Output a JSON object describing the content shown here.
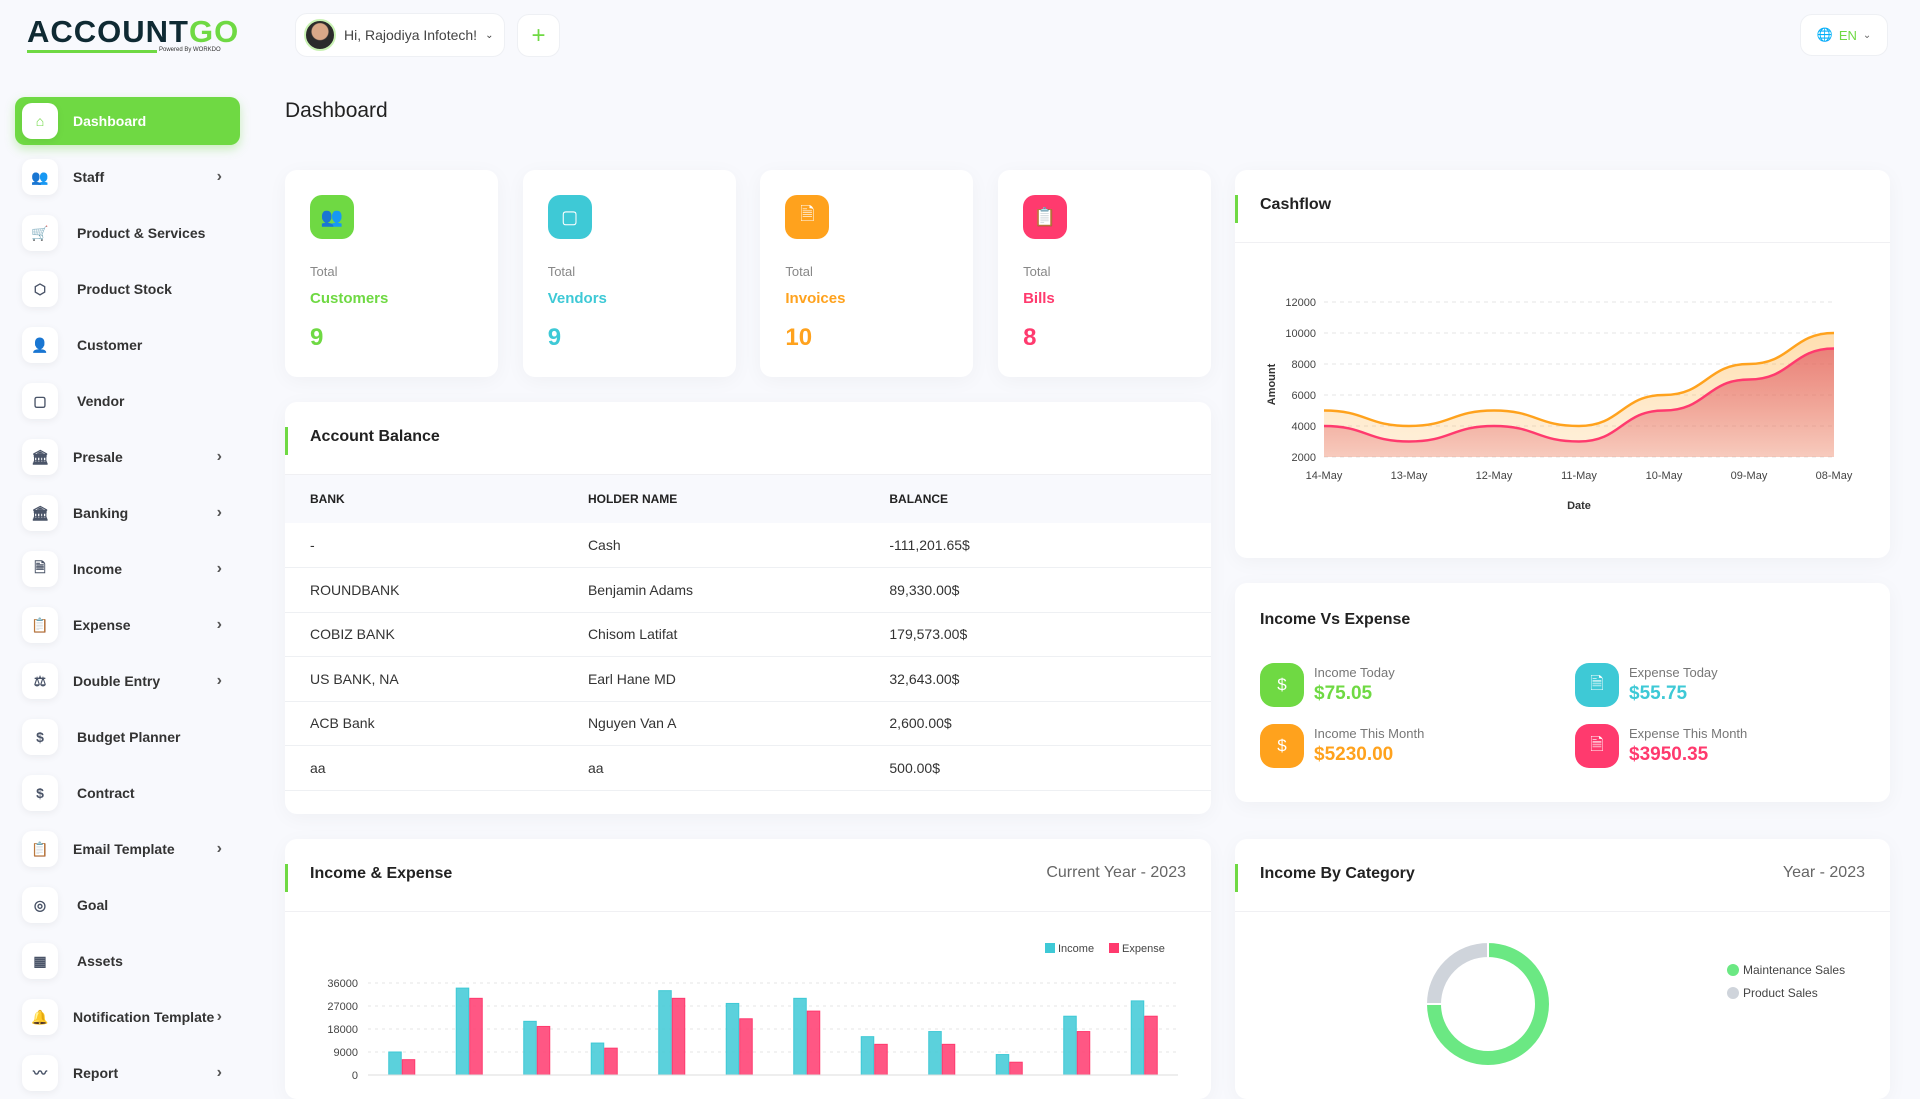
{
  "header": {
    "logo_main": "ACCOUNT",
    "logo_accent": "GO",
    "logo_powered": "Powered By WORKDO",
    "greeting": "Hi, Rajodiya Infotech!",
    "add_label": "+",
    "language": "EN"
  },
  "sidebar": {
    "items": [
      {
        "label": "Dashboard",
        "icon": "home-icon",
        "sub": false,
        "active": true
      },
      {
        "label": "Staff",
        "icon": "users-icon",
        "sub": true
      },
      {
        "label": "Product & Services",
        "icon": "cart-icon",
        "sub": false
      },
      {
        "label": "Product Stock",
        "icon": "box-icon",
        "sub": false
      },
      {
        "label": "Customer",
        "icon": "user-plus-icon",
        "sub": false
      },
      {
        "label": "Vendor",
        "icon": "note-icon",
        "sub": false
      },
      {
        "label": "Presale",
        "icon": "building-icon",
        "sub": true
      },
      {
        "label": "Banking",
        "icon": "bank-icon",
        "sub": true
      },
      {
        "label": "Income",
        "icon": "file-invoice-icon",
        "sub": true
      },
      {
        "label": "Expense",
        "icon": "clipboard-icon",
        "sub": true
      },
      {
        "label": "Double Entry",
        "icon": "scale-icon",
        "sub": true
      },
      {
        "label": "Budget Planner",
        "icon": "coins-icon",
        "sub": false
      },
      {
        "label": "Contract",
        "icon": "coins-icon",
        "sub": false
      },
      {
        "label": "Email Template",
        "icon": "clipboard-check-icon",
        "sub": true
      },
      {
        "label": "Goal",
        "icon": "target-icon",
        "sub": false
      },
      {
        "label": "Assets",
        "icon": "calculator-icon",
        "sub": false
      },
      {
        "label": "Notification Template",
        "icon": "bell-icon",
        "sub": true
      },
      {
        "label": "Report",
        "icon": "chart-line-icon",
        "sub": true
      }
    ]
  },
  "page": {
    "title": "Dashboard"
  },
  "stats": [
    {
      "total": "Total",
      "label": "Customers",
      "value": "9",
      "color": "#6fd943",
      "icon": "users-icon"
    },
    {
      "total": "Total",
      "label": "Vendors",
      "value": "9",
      "color": "#3ec9d6",
      "icon": "note-icon"
    },
    {
      "total": "Total",
      "label": "Invoices",
      "value": "10",
      "color": "#ffa21d",
      "icon": "file-invoice-icon"
    },
    {
      "total": "Total",
      "label": "Bills",
      "value": "8",
      "color": "#ff3a6e",
      "icon": "clipboard-icon"
    }
  ],
  "account_balance": {
    "title": "Account Balance",
    "columns": [
      "BANK",
      "HOLDER NAME",
      "BALANCE"
    ],
    "rows": [
      [
        "-",
        "Cash",
        "-111,201.65$"
      ],
      [
        "ROUNDBANK",
        "Benjamin Adams",
        "89,330.00$"
      ],
      [
        "COBIZ BANK",
        "Chisom Latifat",
        "179,573.00$"
      ],
      [
        "US BANK, NA",
        "Earl Hane MD",
        "32,643.00$"
      ],
      [
        "ACB Bank",
        "Nguyen Van A",
        "2,600.00$"
      ],
      [
        "aa",
        "aa",
        "500.00$"
      ]
    ]
  },
  "income_vs_expense": {
    "title": "Income Vs Expense",
    "items": [
      {
        "label": "Income Today",
        "value": "$75.05",
        "color": "#6fd943",
        "icon": "clipboard-dollar-icon"
      },
      {
        "label": "Expense Today",
        "value": "$55.75",
        "color": "#3ec9d6",
        "icon": "file-icon"
      },
      {
        "label": "Income This Month",
        "value": "$5230.00",
        "color": "#ffa21d",
        "icon": "clipboard-dollar-icon"
      },
      {
        "label": "Expense This Month",
        "value": "$3950.35",
        "color": "#ff3a6e",
        "icon": "file-icon"
      }
    ]
  },
  "chart_data": [
    {
      "id": "cashflow",
      "title": "Cashflow",
      "type": "area",
      "xlabel": "Date",
      "ylabel": "Amount",
      "x": [
        "14-May",
        "13-May",
        "12-May",
        "11-May",
        "10-May",
        "09-May",
        "08-May"
      ],
      "yticks": [
        2000,
        4000,
        6000,
        8000,
        10000,
        12000
      ],
      "ylim": [
        2000,
        12000
      ],
      "grid": true,
      "series": [
        {
          "values": [
            5000,
            4000,
            5000,
            4000,
            6000,
            8000,
            10000
          ],
          "color": "#ffa21d"
        },
        {
          "values": [
            4000,
            3000,
            4000,
            3000,
            5000,
            7000,
            9000
          ],
          "color": "#ff3a6e"
        }
      ]
    },
    {
      "id": "income_expense",
      "title": "Income & Expense",
      "subtitle": "Current Year - 2023",
      "type": "bar",
      "yticks": [
        0,
        9000,
        18000,
        27000,
        36000
      ],
      "ylim": [
        0,
        36000
      ],
      "grid": true,
      "legend": "top-right",
      "series": [
        {
          "name": "Income",
          "color": "#3ec9d6",
          "values": [
            9000,
            34000,
            21000,
            12500,
            33000,
            28000,
            30000,
            15000,
            17000,
            8000,
            23000,
            29000
          ]
        },
        {
          "name": "Expense",
          "color": "#ff3a6e",
          "values": [
            6000,
            30000,
            19000,
            10500,
            30000,
            22000,
            25000,
            12000,
            12000,
            5000,
            17000,
            23000
          ]
        }
      ]
    },
    {
      "id": "income_category",
      "title": "Income By Category",
      "subtitle": "Year - 2023",
      "type": "pie",
      "legend": "right",
      "series": [
        {
          "name": "Maintenance Sales",
          "value": 75,
          "color": "#6be883"
        },
        {
          "name": "Product Sales",
          "value": 25,
          "color": "#cfd4db"
        }
      ]
    }
  ]
}
